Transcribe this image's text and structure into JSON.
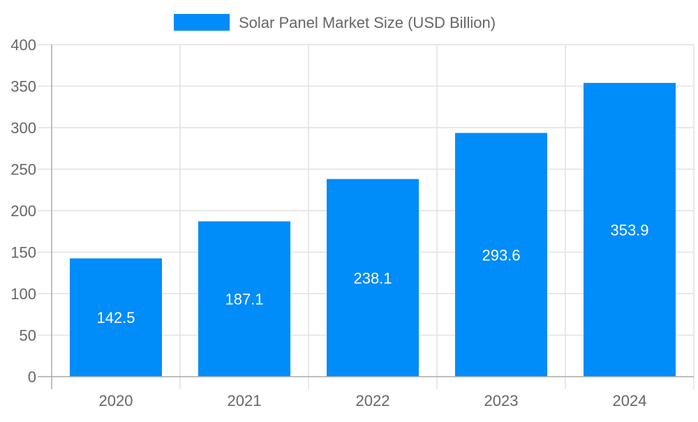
{
  "chart_data": {
    "type": "bar",
    "title": "",
    "xlabel": "",
    "ylabel": "",
    "categories": [
      "2020",
      "2021",
      "2022",
      "2023",
      "2024"
    ],
    "series": [
      {
        "name": "Solar Panel Market Size (USD Billion)",
        "values": [
          142.5,
          187.1,
          238.1,
          293.6,
          353.9
        ],
        "color": "#008cf9"
      }
    ],
    "ylim": [
      0,
      400
    ],
    "yticks": [
      0,
      50,
      100,
      150,
      200,
      250,
      300,
      350,
      400
    ],
    "grid": true,
    "legend_position": "top",
    "data_labels": [
      "142.5",
      "187.1",
      "238.1",
      "293.6",
      "353.9"
    ]
  }
}
